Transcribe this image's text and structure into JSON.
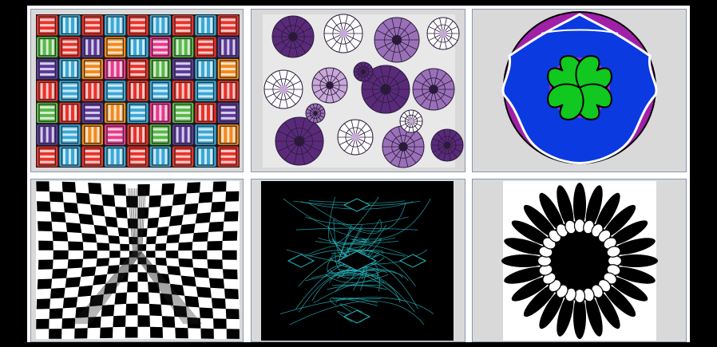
{
  "gallery": {
    "tiles": [
      {
        "id": "weave-grid",
        "colors": [
          "#e8332a",
          "#e83a8c",
          "#58b848",
          "#3aa8d8",
          "#5b3a9a",
          "#f28a1e"
        ]
      },
      {
        "id": "purple-flowers",
        "colors": [
          "#5a2a7a",
          "#9a70b8",
          "#c8a8d8",
          "#ffffff"
        ]
      },
      {
        "id": "mandala-circle",
        "colors": [
          "#a020a8",
          "#0a3ae0",
          "#22d0e0",
          "#10c820",
          "#000000"
        ]
      },
      {
        "id": "warped-checkerboard",
        "colors": [
          "#000000",
          "#ffffff"
        ]
      },
      {
        "id": "teal-fractal",
        "colors": [
          "#000000",
          "#2ab8c0"
        ]
      },
      {
        "id": "sunflower-petals",
        "colors": [
          "#000000",
          "#ffffff"
        ]
      }
    ]
  }
}
